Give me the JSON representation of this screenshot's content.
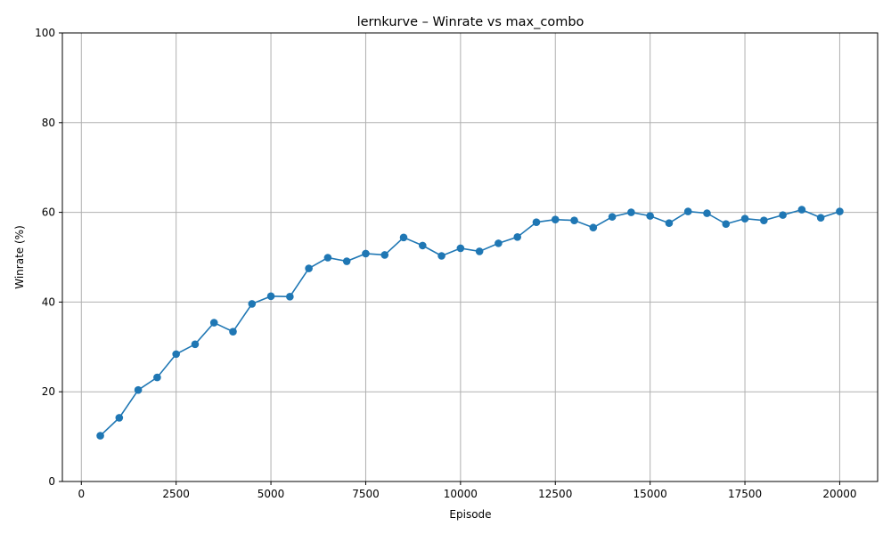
{
  "chart_data": {
    "type": "line",
    "title": "lernkurve – Winrate vs max_combo",
    "xlabel": "Episode",
    "ylabel": "Winrate (%)",
    "xlim": [
      -500,
      21000
    ],
    "ylim": [
      0,
      100
    ],
    "xticks": [
      0,
      2500,
      5000,
      7500,
      10000,
      12500,
      15000,
      17500,
      20000
    ],
    "yticks": [
      0,
      20,
      40,
      60,
      80,
      100
    ],
    "grid": true,
    "color": "#1f77b4",
    "series": [
      {
        "x": [
          500,
          1000,
          1500,
          2000,
          2500,
          3000,
          3500,
          4000,
          4500,
          5000,
          5500,
          6000,
          6500,
          7000,
          7500,
          8000,
          8500,
          9000,
          9500,
          10000,
          10500,
          11000,
          11500,
          12000,
          12500,
          13000,
          13500,
          14000,
          14500,
          15000,
          15500,
          16000,
          16500,
          17000,
          17500,
          18000,
          18500,
          19000,
          19500,
          20000
        ],
        "y": [
          10.2,
          14.2,
          20.4,
          23.2,
          28.4,
          30.6,
          35.4,
          33.4,
          39.6,
          41.3,
          41.2,
          47.5,
          49.9,
          49.1,
          50.8,
          50.5,
          54.4,
          52.6,
          50.3,
          52.0,
          51.3,
          53.1,
          54.5,
          57.8,
          58.4,
          58.2,
          56.6,
          59.0,
          60.0,
          59.2,
          57.6,
          60.2,
          59.8,
          57.4,
          58.6,
          58.2,
          59.4,
          60.6,
          58.8,
          60.2
        ]
      }
    ]
  }
}
